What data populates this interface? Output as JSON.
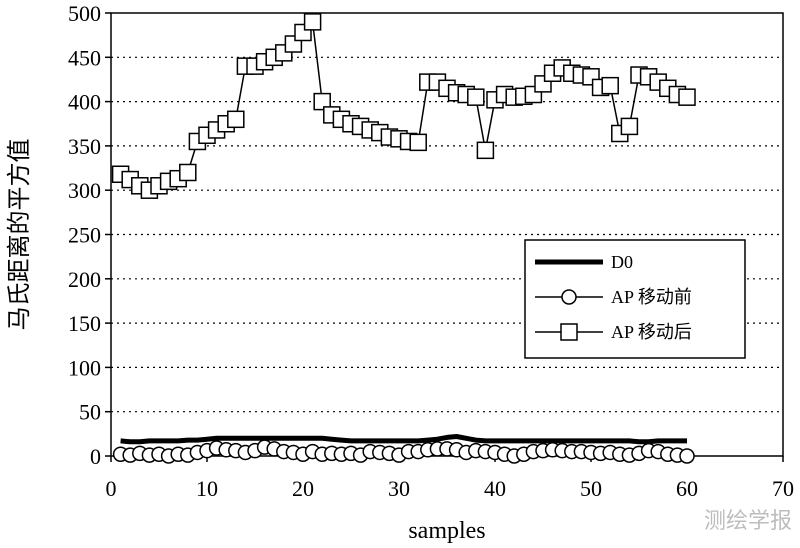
{
  "watermark": "测绘学报",
  "chart_data": {
    "type": "line",
    "title": "",
    "xlabel": "samples",
    "ylabel": "马氏距离的平方值",
    "xlim": [
      0,
      70
    ],
    "ylim": [
      0,
      500
    ],
    "xticks": [
      0,
      10,
      20,
      30,
      40,
      50,
      60,
      70
    ],
    "yticks": [
      0,
      50,
      100,
      150,
      200,
      250,
      300,
      350,
      400,
      450,
      500
    ],
    "grid": "horizontal-dotted",
    "legend_position": "center-right",
    "series": [
      {
        "name": "D0",
        "marker": "none",
        "color": "#000000",
        "x": [
          1,
          2,
          3,
          4,
          5,
          6,
          7,
          8,
          9,
          10,
          11,
          12,
          13,
          14,
          15,
          16,
          17,
          18,
          19,
          20,
          21,
          22,
          23,
          24,
          25,
          26,
          27,
          28,
          29,
          30,
          31,
          32,
          33,
          34,
          35,
          36,
          37,
          38,
          39,
          40,
          41,
          42,
          43,
          44,
          45,
          46,
          47,
          48,
          49,
          50,
          51,
          52,
          53,
          54,
          55,
          56,
          57,
          58,
          59,
          60
        ],
        "y": [
          17,
          16,
          16,
          17,
          17,
          17,
          17,
          18,
          18,
          19,
          20,
          20,
          20,
          20,
          20,
          20,
          20,
          20,
          20,
          20,
          20,
          20,
          19,
          18,
          17,
          17,
          17,
          17,
          17,
          17,
          17,
          17,
          18,
          19,
          21,
          22,
          20,
          18,
          17,
          17,
          17,
          17,
          17,
          17,
          17,
          17,
          17,
          17,
          17,
          17,
          17,
          17,
          17,
          17,
          16,
          16,
          17,
          17,
          17,
          17
        ]
      },
      {
        "name": "AP 移动前",
        "marker": "circle",
        "color": "#000000",
        "x": [
          1,
          2,
          3,
          4,
          5,
          6,
          7,
          8,
          9,
          10,
          11,
          12,
          13,
          14,
          15,
          16,
          17,
          18,
          19,
          20,
          21,
          22,
          23,
          24,
          25,
          26,
          27,
          28,
          29,
          30,
          31,
          32,
          33,
          34,
          35,
          36,
          37,
          38,
          39,
          40,
          41,
          42,
          43,
          44,
          45,
          46,
          47,
          48,
          49,
          50,
          51,
          52,
          53,
          54,
          55,
          56,
          57,
          58,
          59,
          60
        ],
        "y": [
          2,
          1,
          3,
          1,
          2,
          0,
          2,
          1,
          4,
          6,
          9,
          7,
          6,
          4,
          6,
          10,
          8,
          5,
          4,
          2,
          5,
          2,
          3,
          2,
          3,
          1,
          5,
          4,
          3,
          1,
          5,
          5,
          7,
          8,
          8,
          7,
          4,
          6,
          5,
          4,
          2,
          0,
          2,
          5,
          6,
          7,
          6,
          5,
          5,
          4,
          3,
          4,
          2,
          1,
          3,
          6,
          5,
          2,
          1,
          0
        ]
      },
      {
        "name": "AP 移动后",
        "marker": "square",
        "color": "#000000",
        "x": [
          1,
          2,
          3,
          4,
          5,
          6,
          7,
          8,
          9,
          10,
          11,
          12,
          13,
          14,
          15,
          16,
          17,
          18,
          19,
          20,
          21,
          22,
          23,
          24,
          25,
          26,
          27,
          28,
          29,
          30,
          31,
          32,
          33,
          34,
          35,
          36,
          37,
          38,
          39,
          40,
          41,
          42,
          43,
          44,
          45,
          46,
          47,
          48,
          49,
          50,
          51,
          52,
          53,
          54,
          55,
          56,
          57,
          58,
          59,
          60
        ],
        "y": [
          318,
          312,
          305,
          300,
          305,
          310,
          313,
          320,
          355,
          362,
          368,
          375,
          380,
          440,
          440,
          445,
          450,
          455,
          465,
          478,
          490,
          400,
          385,
          380,
          375,
          372,
          368,
          365,
          360,
          358,
          355,
          354,
          422,
          422,
          415,
          410,
          408,
          405,
          345,
          402,
          408,
          405,
          406,
          408,
          420,
          432,
          438,
          432,
          430,
          428,
          416,
          418,
          364,
          372,
          430,
          428,
          422,
          415,
          408,
          405
        ]
      }
    ]
  }
}
